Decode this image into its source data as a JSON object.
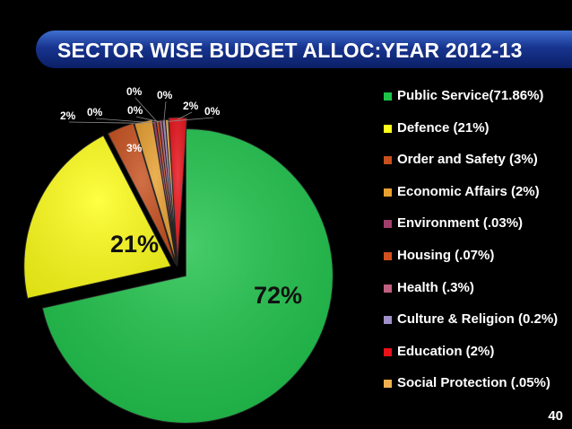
{
  "slide": {
    "title": "SECTOR WISE BUDGET  ALLOC:YEAR 2012-13",
    "page_number": "40",
    "background": "#000000",
    "title_bar_color": "#17348f"
  },
  "chart_data": {
    "type": "pie",
    "title": "SECTOR WISE BUDGET  ALLOC:YEAR 2012-13",
    "legend_position": "right",
    "exploded": true,
    "slices": [
      {
        "name": "Public Service(71.86%)",
        "value": 71.86,
        "label": "72%",
        "color": "#1ec24a"
      },
      {
        "name": "Defence (21%)",
        "value": 21,
        "label": "21%",
        "color": "#ffff1a"
      },
      {
        "name": "Order and Safety (3%)",
        "value": 3,
        "label": "3%",
        "color": "#c7501e"
      },
      {
        "name": "Economic Affairs (2%)",
        "value": 2,
        "label": "2%",
        "color": "#e8a030"
      },
      {
        "name": "Environment (.03%)",
        "value": 0.03,
        "label": "0%",
        "color": "#a0406a"
      },
      {
        "name": "Housing (.07%)",
        "value": 0.07,
        "label": "0%",
        "color": "#d05020"
      },
      {
        "name": "Health (.3%)",
        "value": 0.3,
        "label": "0%",
        "color": "#c06080"
      },
      {
        "name": "Culture & Religion (0.2%)",
        "value": 0.2,
        "label": "0%",
        "color": "#a090c8"
      },
      {
        "name": "Education (2%)",
        "value": 2,
        "label": "2%",
        "color": "#e8121a"
      },
      {
        "name": "Social Protection (.05%)",
        "value": 0.05,
        "label": "0%",
        "color": "#f0b050"
      }
    ]
  }
}
